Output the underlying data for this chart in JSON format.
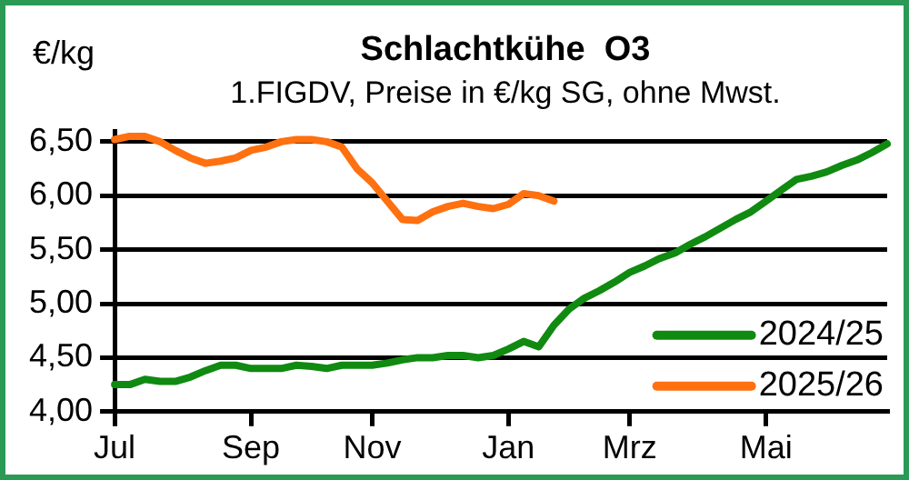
{
  "chart_data": {
    "type": "line",
    "title": "Schlachtkühe  O3",
    "subtitle": "1.FIGDV, Preise in €/kg SG, ohne Mwst.",
    "ylabel": "€/kg",
    "categories": [
      "Jul",
      null,
      null,
      null,
      null,
      null,
      null,
      null,
      null,
      "Sep",
      null,
      null,
      null,
      null,
      null,
      null,
      null,
      "Nov",
      null,
      null,
      null,
      null,
      null,
      null,
      null,
      null,
      "Jan",
      null,
      null,
      null,
      null,
      null,
      null,
      null,
      "Mrz",
      null,
      null,
      null,
      null,
      null,
      null,
      null,
      null,
      "Mai",
      null,
      null,
      null,
      null,
      null,
      null,
      null,
      null
    ],
    "series": [
      {
        "name": "2024/25",
        "color": "#108a10",
        "values": [
          4.25,
          4.25,
          4.3,
          4.28,
          4.28,
          4.32,
          4.38,
          4.43,
          4.43,
          4.4,
          4.4,
          4.4,
          4.43,
          4.42,
          4.4,
          4.43,
          4.43,
          4.43,
          4.45,
          4.48,
          4.5,
          4.5,
          4.52,
          4.52,
          4.5,
          4.52,
          4.58,
          4.65,
          4.6,
          4.8,
          4.95,
          5.05,
          5.12,
          5.2,
          5.29,
          5.35,
          5.42,
          5.47,
          5.55,
          5.62,
          5.7,
          5.78,
          5.85,
          5.95,
          6.05,
          6.15,
          6.18,
          6.22,
          6.28,
          6.33,
          6.4,
          6.48
        ]
      },
      {
        "name": "2025/26",
        "color": "#ff7010",
        "values": [
          6.52,
          6.55,
          6.55,
          6.5,
          6.42,
          6.35,
          6.3,
          6.32,
          6.35,
          6.42,
          6.45,
          6.5,
          6.52,
          6.52,
          6.5,
          6.45,
          6.25,
          6.12,
          5.95,
          5.78,
          5.77,
          5.85,
          5.9,
          5.93,
          5.9,
          5.88,
          5.92,
          6.02,
          6.0,
          5.95,
          null,
          null,
          null,
          null,
          null,
          null,
          null,
          null,
          null,
          null,
          null,
          null,
          null,
          null,
          null,
          null,
          null,
          null,
          null,
          null,
          null,
          null
        ]
      }
    ],
    "ylim": [
      4,
      6.6
    ],
    "yticks": [
      {
        "value": 4,
        "label": "4,00"
      },
      {
        "value": 4.5,
        "label": "4,50"
      },
      {
        "value": 5,
        "label": "5,00"
      },
      {
        "value": 5.5,
        "label": "5,50"
      },
      {
        "value": 6,
        "label": "6,00"
      },
      {
        "value": 6.5,
        "label": "6,50"
      }
    ],
    "grid": "y",
    "legend": "bottom right",
    "marker": "none",
    "line_style": "solid"
  }
}
